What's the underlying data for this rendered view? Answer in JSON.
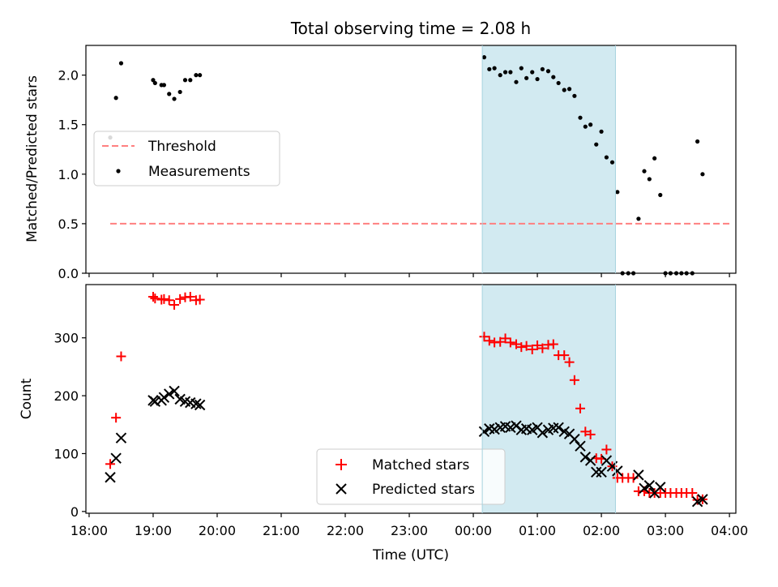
{
  "chart_data": [
    {
      "type": "scatter",
      "title": "Total observing time = 2.08 h",
      "xlabel": "",
      "ylabel": "Matched/Predicted stars",
      "ylim": [
        0,
        2.3
      ],
      "yticks": [
        0.0,
        0.5,
        1.0,
        1.5,
        2.0
      ],
      "ytick_labels": [
        "0.0",
        "0.5",
        "1.0",
        "1.5",
        "2.0"
      ],
      "xlim_hours": [
        17.95,
        28.1
      ],
      "shaded_span_hours": [
        24.14,
        26.22
      ],
      "legend_position": "center-left",
      "series": [
        {
          "name": "Threshold",
          "style": "dashed-line",
          "color": "#ff8080",
          "x": [
            18.33,
            28.0
          ],
          "y": [
            0.5,
            0.5
          ]
        },
        {
          "name": "Measurements",
          "style": "dot",
          "color": "#000000",
          "x": [
            18.33,
            18.42,
            18.5,
            19.0,
            19.03,
            19.13,
            19.17,
            19.25,
            19.33,
            19.42,
            19.5,
            19.58,
            19.67,
            19.73,
            24.17,
            24.25,
            24.33,
            24.42,
            24.5,
            24.58,
            24.67,
            24.75,
            24.83,
            24.92,
            25.0,
            25.08,
            25.17,
            25.25,
            25.33,
            25.42,
            25.5,
            25.58,
            25.67,
            25.75,
            25.83,
            25.92,
            26.0,
            26.08,
            26.17,
            26.25,
            26.33,
            26.42,
            26.5,
            26.58,
            26.67,
            26.75,
            26.83,
            26.92,
            27.0,
            27.08,
            27.17,
            27.25,
            27.33,
            27.42,
            27.5,
            27.58
          ],
          "y": [
            1.37,
            1.77,
            2.12,
            1.95,
            1.92,
            1.9,
            1.9,
            1.81,
            1.76,
            1.83,
            1.95,
            1.95,
            2.0,
            2.0,
            2.18,
            2.06,
            2.07,
            2.0,
            2.03,
            2.03,
            1.93,
            2.07,
            1.97,
            2.03,
            1.96,
            2.06,
            2.04,
            1.98,
            1.92,
            1.85,
            1.86,
            1.79,
            1.57,
            1.48,
            1.5,
            1.3,
            1.43,
            1.17,
            1.12,
            0.82,
            0.0,
            0.0,
            0.0,
            0.55,
            1.03,
            0.95,
            1.16,
            0.79,
            0.0,
            0.0,
            0.0,
            0.0,
            0.0,
            0.0,
            1.33,
            1.0
          ]
        }
      ]
    },
    {
      "type": "scatter",
      "title": "",
      "xlabel": "Time (UTC)",
      "ylabel": "Count",
      "ylim": [
        -3,
        392
      ],
      "yticks": [
        0,
        100,
        200,
        300
      ],
      "ytick_labels": [
        "0",
        "100",
        "200",
        "300"
      ],
      "xlim_hours": [
        17.95,
        28.1
      ],
      "xticks_hours": [
        18,
        19,
        20,
        21,
        22,
        23,
        24,
        25,
        26,
        27,
        28
      ],
      "xtick_labels": [
        "18:00",
        "19:00",
        "20:00",
        "21:00",
        "22:00",
        "23:00",
        "00:00",
        "01:00",
        "02:00",
        "03:00",
        "04:00"
      ],
      "shaded_span_hours": [
        24.14,
        26.22
      ],
      "legend_position": "lower-center",
      "series": [
        {
          "name": "Matched stars",
          "marker": "plus",
          "color": "#ff0000",
          "x": [
            18.33,
            18.42,
            18.5,
            19.0,
            19.03,
            19.13,
            19.17,
            19.25,
            19.33,
            19.42,
            19.5,
            19.58,
            19.67,
            19.73,
            24.17,
            24.25,
            24.33,
            24.42,
            24.5,
            24.58,
            24.67,
            24.75,
            24.83,
            24.92,
            25.0,
            25.08,
            25.17,
            25.25,
            25.33,
            25.42,
            25.5,
            25.58,
            25.67,
            25.75,
            25.83,
            25.92,
            26.0,
            26.08,
            26.17,
            26.25,
            26.33,
            26.42,
            26.5,
            26.58,
            26.67,
            26.75,
            26.83,
            26.92,
            27.0,
            27.08,
            27.17,
            27.25,
            27.33,
            27.42,
            27.5,
            27.58
          ],
          "y": [
            82,
            162,
            268,
            371,
            368,
            366,
            367,
            365,
            357,
            367,
            370,
            371,
            365,
            366,
            302,
            295,
            292,
            293,
            299,
            292,
            289,
            284,
            286,
            280,
            287,
            282,
            288,
            289,
            270,
            270,
            258,
            227,
            178,
            138,
            133,
            92,
            91,
            107,
            78,
            58,
            58,
            58,
            58,
            35,
            35,
            32,
            32,
            32,
            32,
            32,
            32,
            32,
            32,
            32,
            20,
            21
          ]
        },
        {
          "name": "Predicted stars",
          "marker": "x",
          "color": "#000000",
          "x": [
            18.33,
            18.42,
            18.5,
            19.0,
            19.03,
            19.13,
            19.17,
            19.25,
            19.33,
            19.42,
            19.5,
            19.58,
            19.67,
            19.73,
            24.17,
            24.25,
            24.33,
            24.42,
            24.5,
            24.58,
            24.67,
            24.75,
            24.83,
            24.92,
            25.0,
            25.08,
            25.17,
            25.25,
            25.33,
            25.42,
            25.5,
            25.58,
            25.67,
            25.75,
            25.83,
            25.92,
            26.0,
            26.08,
            26.17,
            26.25,
            26.58,
            26.67,
            26.75,
            26.83,
            26.92,
            27.5,
            27.58
          ],
          "y": [
            59,
            92,
            127,
            192,
            190,
            192,
            197,
            203,
            208,
            194,
            190,
            188,
            186,
            184,
            138,
            143,
            142,
            145,
            147,
            145,
            148,
            141,
            143,
            141,
            145,
            136,
            141,
            144,
            145,
            138,
            134,
            125,
            113,
            94,
            88,
            68,
            68,
            88,
            78,
            70,
            63,
            40,
            45,
            32,
            42,
            17,
            21
          ]
        }
      ]
    }
  ]
}
